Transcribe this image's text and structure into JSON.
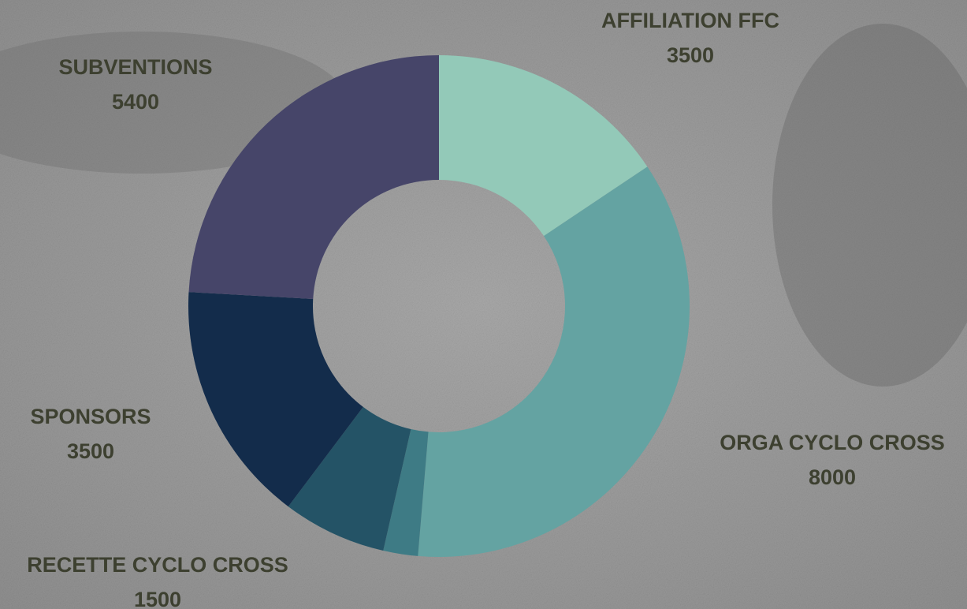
{
  "chart_data": {
    "type": "donut",
    "categories": [
      "AFFILIATION FFC",
      "ORGA CYCLO CROSS",
      null,
      "RECETTE CYCLO CROSS",
      "SPONSORS",
      "SUBVENTIONS"
    ],
    "values": [
      3500,
      8000,
      500,
      1500,
      3500,
      5400
    ],
    "colors": [
      "#93c9b8",
      "#64a3a2",
      "#3e7b85",
      "#245366",
      "#132c4b",
      "#464569"
    ]
  }
}
